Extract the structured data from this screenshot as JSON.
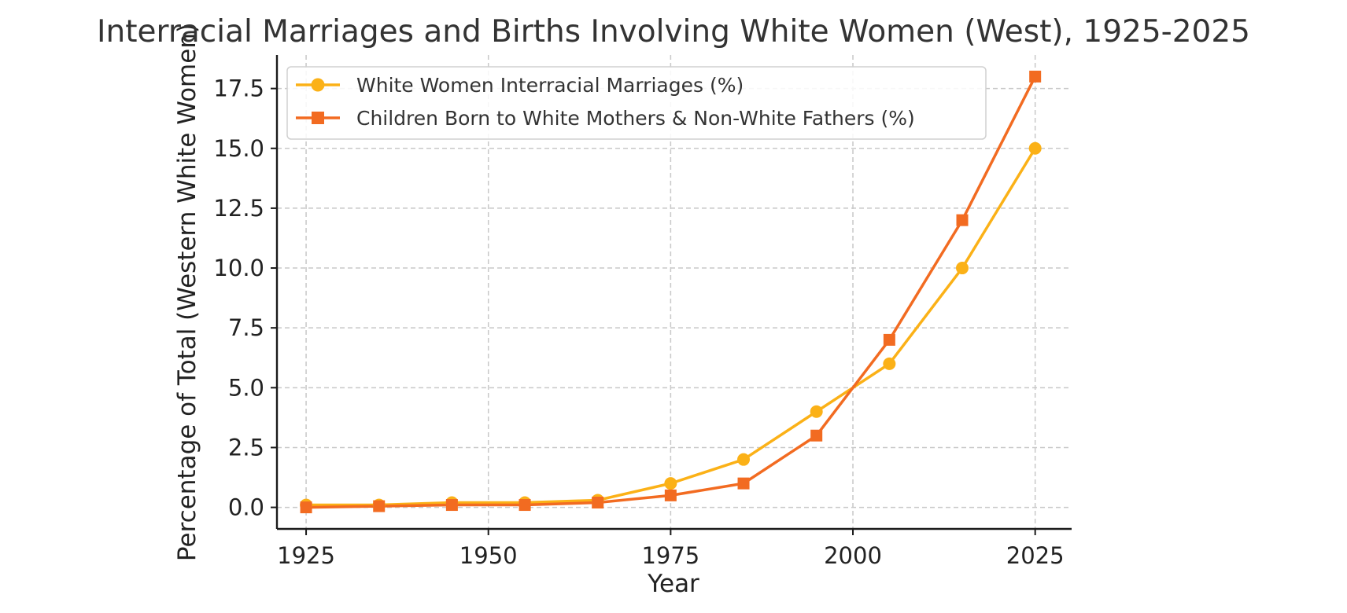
{
  "chart_data": {
    "type": "line",
    "title": "Interracial Marriages and Births Involving White Women (West), 1925-2025",
    "xlabel": "Year",
    "ylabel": "Percentage of Total (Western White Women)",
    "xlim": [
      1921,
      2030
    ],
    "ylim": [
      -0.9,
      18.9
    ],
    "x_ticks": [
      1925,
      1950,
      1975,
      2000,
      2025
    ],
    "y_ticks": [
      0.0,
      2.5,
      5.0,
      7.5,
      10.0,
      12.5,
      15.0,
      17.5
    ],
    "grid": true,
    "legend_position": "upper-left",
    "x": [
      1925,
      1935,
      1945,
      1955,
      1965,
      1975,
      1985,
      1995,
      2005,
      2015,
      2025
    ],
    "series": [
      {
        "name": "White Women Interracial Marriages (%)",
        "color": "#FBB117",
        "marker": "circle",
        "values": [
          0.1,
          0.1,
          0.2,
          0.2,
          0.3,
          1.0,
          2.0,
          4.0,
          6.0,
          10.0,
          15.0
        ]
      },
      {
        "name": "Children Born to White Mothers & Non-White Fathers (%)",
        "color": "#F26B21",
        "marker": "square",
        "values": [
          0.0,
          0.05,
          0.1,
          0.1,
          0.2,
          0.5,
          1.0,
          3.0,
          7.0,
          12.0,
          18.0
        ]
      }
    ]
  }
}
